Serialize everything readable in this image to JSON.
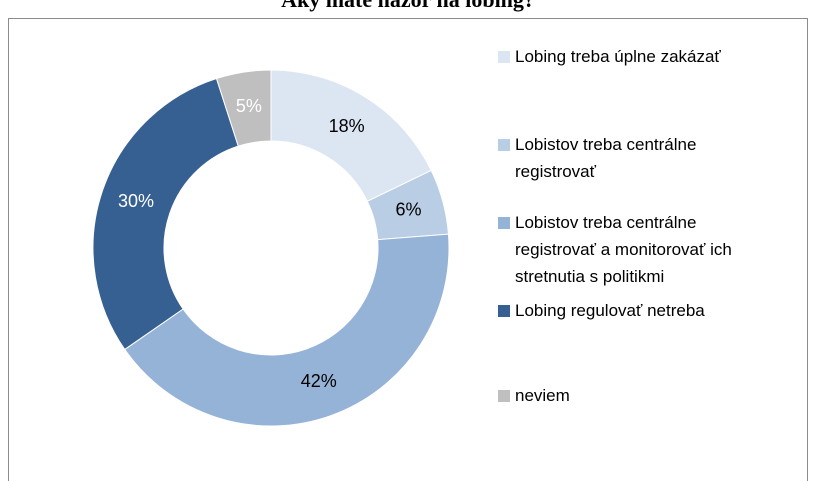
{
  "chart_data": {
    "type": "donut",
    "title": "Aký máte názor na lobing?",
    "categories": [
      "Lobing treba úplne zakázať",
      "Lobistov treba centrálne registrovať",
      "Lobistov treba centrálne registrovať a monitorovať ich stretnutia s politikmi",
      "Lobing regulovať netreba",
      "neviem"
    ],
    "values": [
      18,
      6,
      42,
      30,
      5
    ],
    "value_labels": [
      "18%",
      "6%",
      "42%",
      "30%",
      "5%"
    ],
    "colors": [
      "#dce6f2",
      "#b9cde5",
      "#95b3d7",
      "#376092",
      "#bfbfbf"
    ],
    "label_colors": [
      "#000000",
      "#000000",
      "#000000",
      "#ffffff",
      "#ffffff"
    ],
    "legend": "right"
  }
}
